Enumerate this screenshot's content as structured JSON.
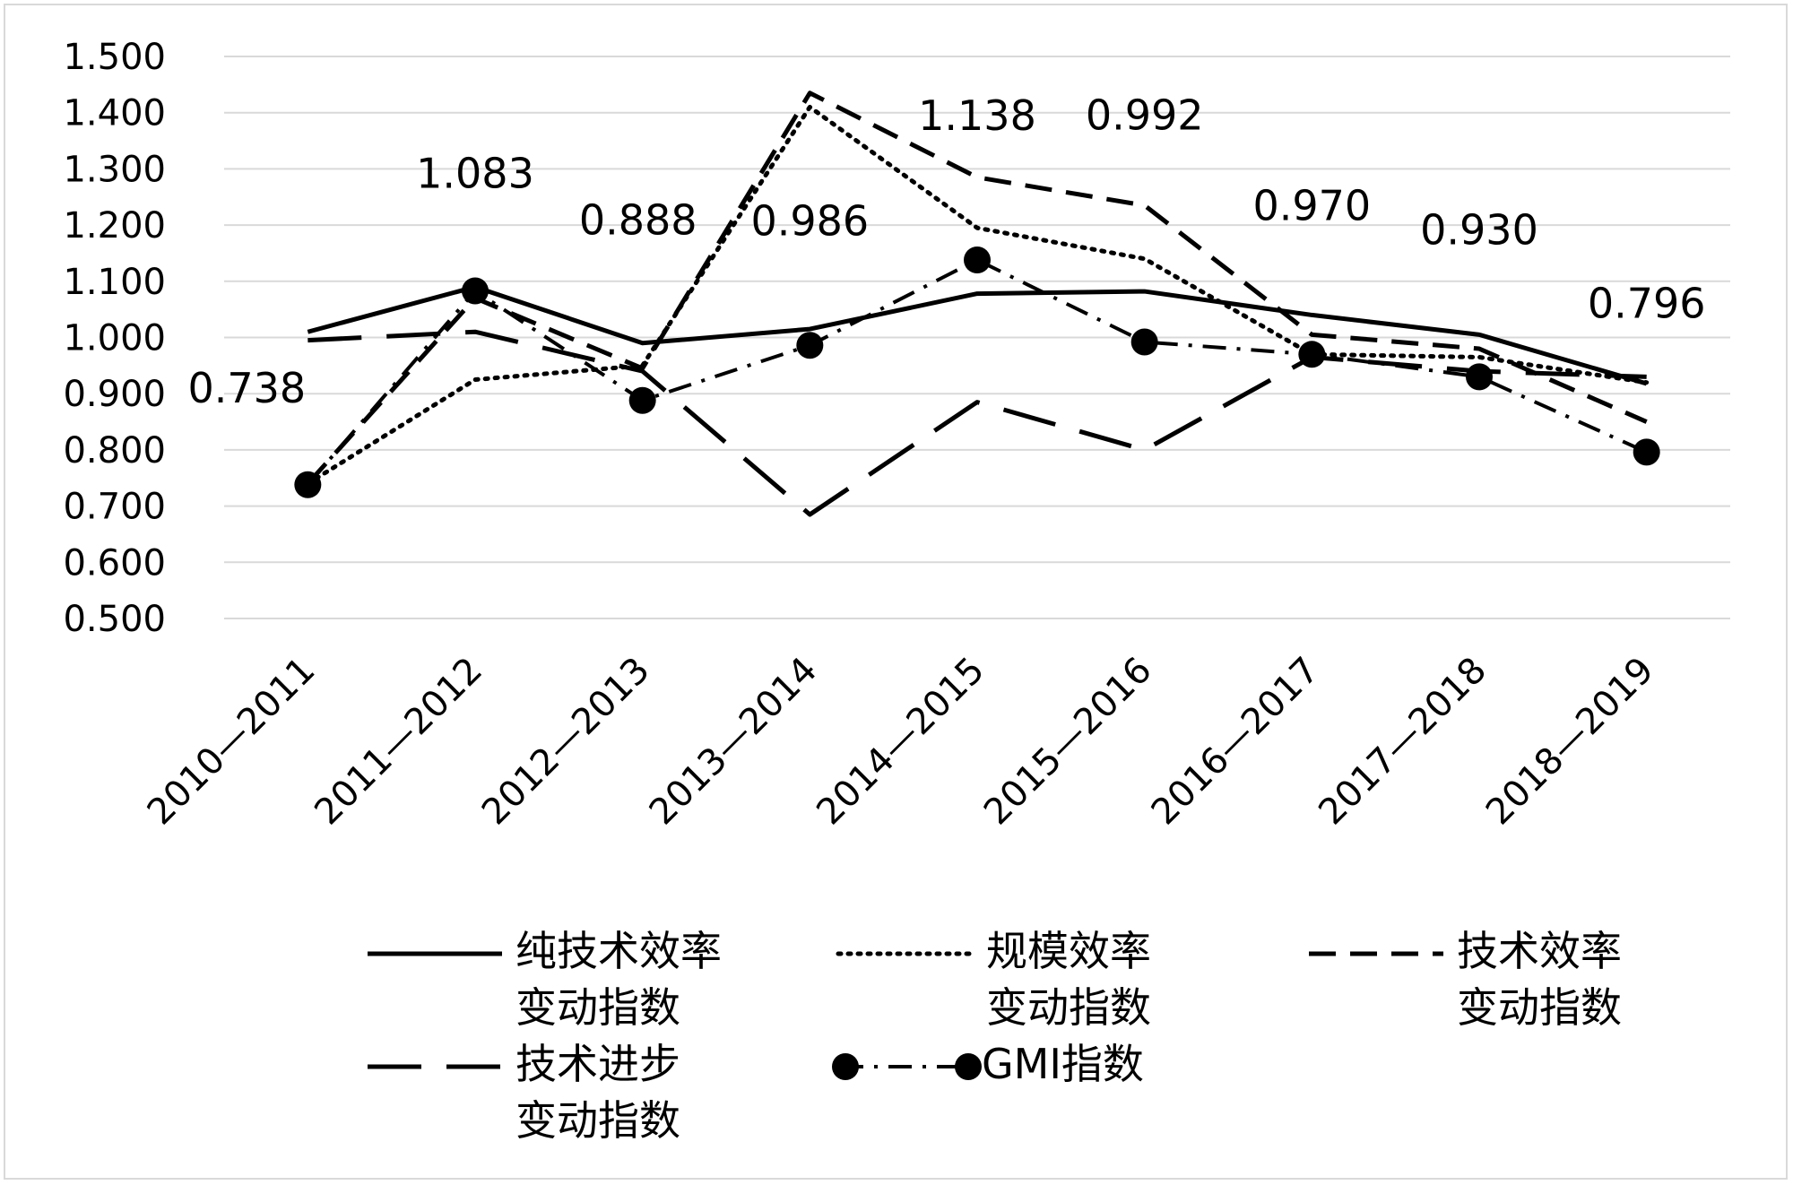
{
  "chart_data": {
    "type": "line",
    "categories": [
      "2010—2011",
      "2011—2012",
      "2012—2013",
      "2013—2014",
      "2014—2015",
      "2015—2016",
      "2016—2017",
      "2017—2018",
      "2018—2019"
    ],
    "ylim": [
      0.5,
      1.5
    ],
    "yticks": [
      "0.500",
      "0.600",
      "0.700",
      "0.800",
      "0.900",
      "1.000",
      "1.100",
      "1.200",
      "1.300",
      "1.400",
      "1.500"
    ],
    "grid": true,
    "legend_position": "bottom",
    "series": [
      {
        "name_lines": [
          "纯技术效率",
          "变动指数"
        ],
        "style": "solid",
        "values": [
          1.01,
          1.09,
          0.99,
          1.015,
          1.078,
          1.082,
          1.04,
          1.005,
          0.918
        ]
      },
      {
        "name_lines": [
          "规模效率",
          "变动指数"
        ],
        "style": "dotted",
        "values": [
          0.74,
          0.925,
          0.95,
          1.41,
          1.195,
          1.14,
          0.97,
          0.965,
          0.92
        ]
      },
      {
        "name_lines": [
          "技术效率",
          "变动指数"
        ],
        "style": "dashed",
        "values": [
          0.74,
          1.07,
          0.945,
          1.435,
          1.285,
          1.235,
          1.005,
          0.98,
          0.85
        ]
      },
      {
        "name_lines": [
          "技术进步",
          "变动指数"
        ],
        "style": "longdash",
        "values": [
          0.995,
          1.01,
          0.94,
          0.685,
          0.885,
          0.8,
          0.965,
          0.94,
          0.93
        ]
      },
      {
        "name_lines": [
          "GMI指数"
        ],
        "style": "dashdot-marker",
        "values": [
          0.738,
          1.083,
          0.888,
          0.986,
          1.138,
          0.992,
          0.97,
          0.93,
          0.796
        ],
        "data_labels": [
          "0.738",
          "1.083",
          "0.888",
          "0.986",
          "1.138",
          "0.992",
          "0.970",
          "0.930",
          "0.796"
        ]
      }
    ]
  }
}
